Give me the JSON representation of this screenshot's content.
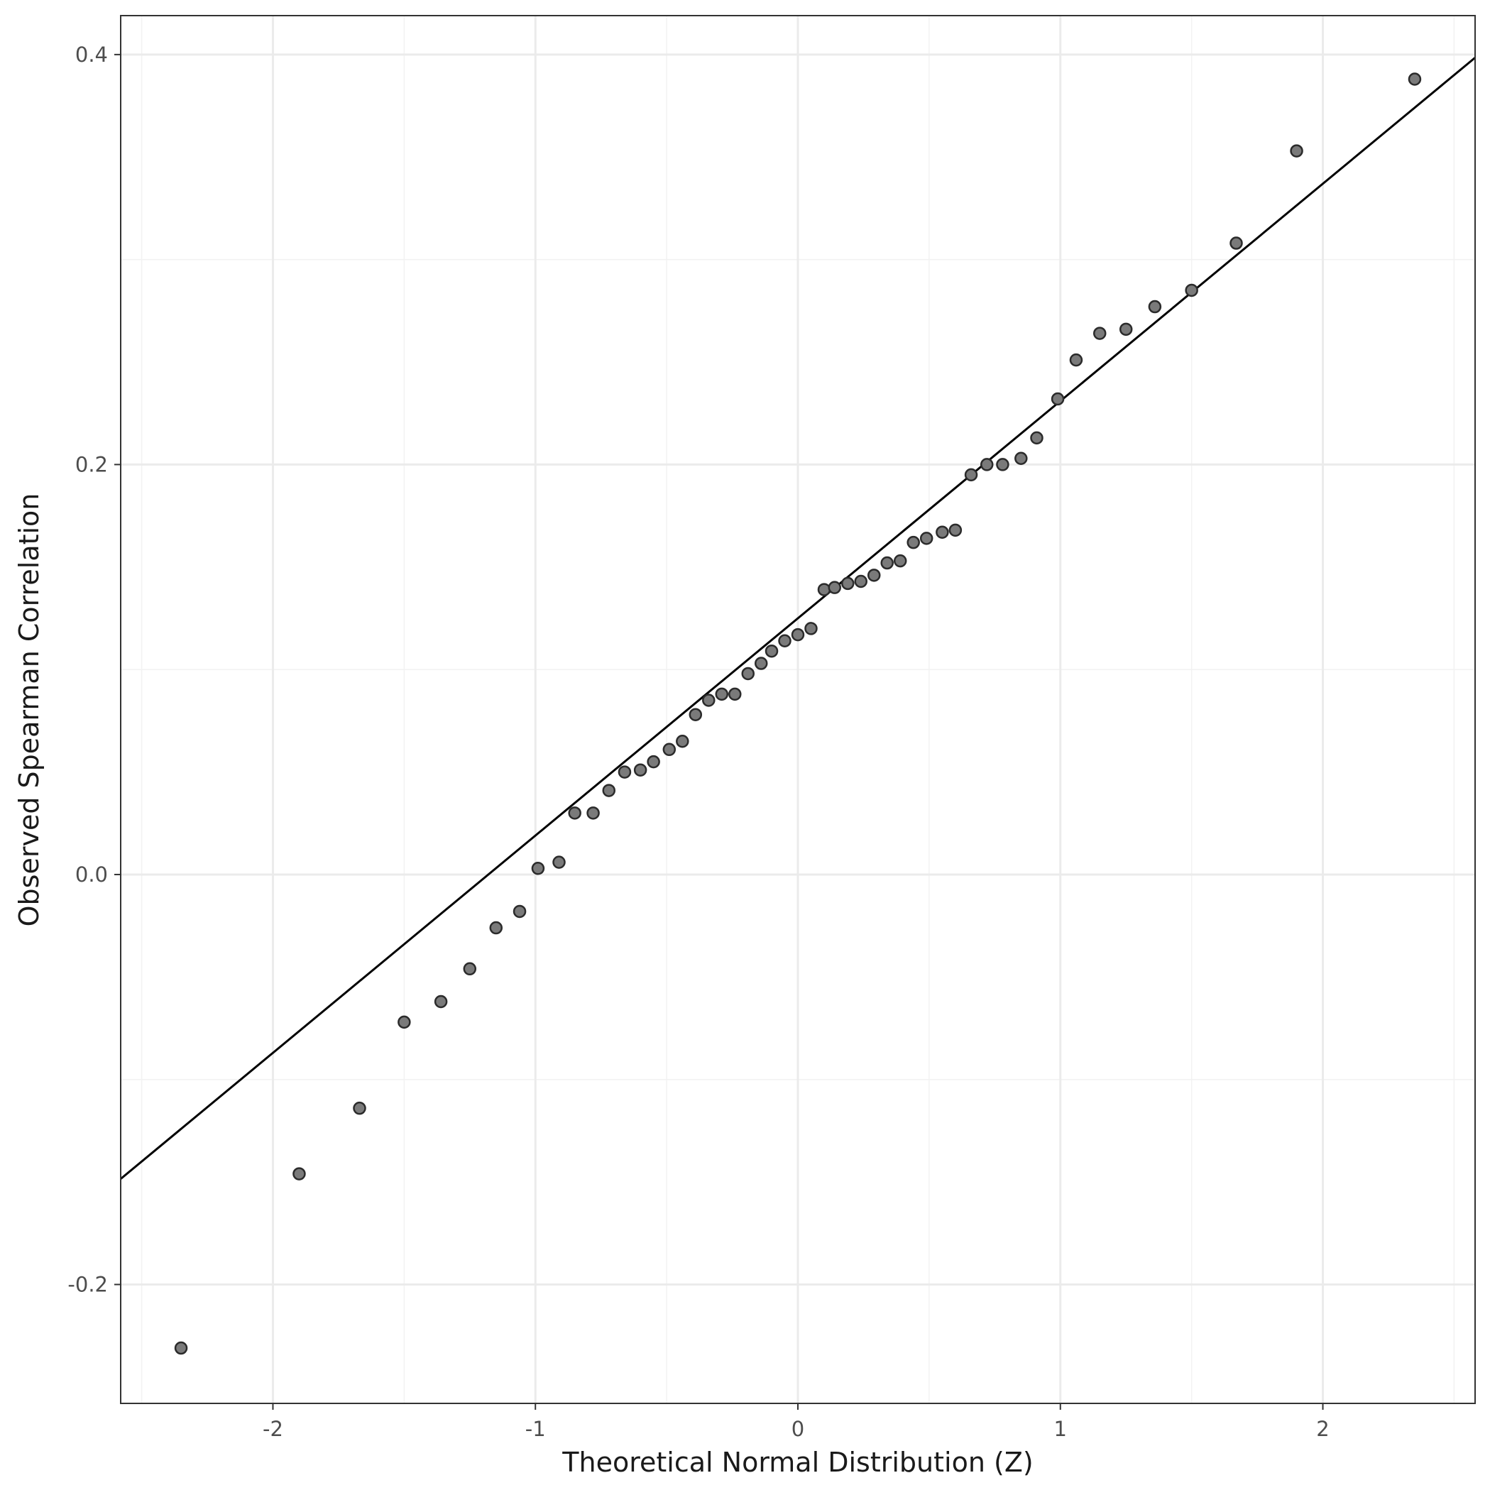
{
  "chart_data": {
    "type": "scatter",
    "title": "",
    "xlabel": "Theoretical Normal Distribution (Z)",
    "ylabel": "Observed Spearman Correlation",
    "xlim": [
      -2.58,
      2.58
    ],
    "ylim": [
      -0.258,
      0.419
    ],
    "x_ticks": [
      -2,
      -1,
      0,
      1,
      2
    ],
    "x_tick_labels": [
      "-2",
      "-1",
      "0",
      "1",
      "2"
    ],
    "y_ticks": [
      -0.2,
      0.0,
      0.2,
      0.4
    ],
    "y_tick_labels": [
      "-0.2",
      "0.0",
      "0.2",
      "0.4"
    ],
    "grid": true,
    "legend": "none",
    "point_color": "#7a7a7a",
    "reference_line": {
      "intercept": 0.125,
      "slope": 0.106
    },
    "x": [
      -2.35,
      -1.9,
      -1.67,
      -1.5,
      -1.36,
      -1.25,
      -1.15,
      -1.06,
      -0.99,
      -0.91,
      -0.85,
      -0.78,
      -0.72,
      -0.66,
      -0.6,
      -0.55,
      -0.49,
      -0.44,
      -0.39,
      -0.34,
      -0.29,
      -0.24,
      -0.19,
      -0.14,
      -0.1,
      -0.05,
      0.0,
      0.05,
      0.1,
      0.14,
      0.19,
      0.24,
      0.29,
      0.34,
      0.39,
      0.44,
      0.49,
      0.55,
      0.6,
      0.66,
      0.72,
      0.78,
      0.85,
      0.91,
      0.99,
      1.06,
      1.15,
      1.25,
      1.36,
      1.5,
      1.67,
      1.9,
      2.35
    ],
    "y": [
      -0.231,
      -0.146,
      -0.114,
      -0.072,
      -0.062,
      -0.046,
      -0.026,
      -0.018,
      0.003,
      0.006,
      0.03,
      0.03,
      0.041,
      0.05,
      0.051,
      0.055,
      0.061,
      0.065,
      0.078,
      0.085,
      0.088,
      0.088,
      0.098,
      0.103,
      0.109,
      0.114,
      0.117,
      0.12,
      0.139,
      0.14,
      0.142,
      0.143,
      0.146,
      0.152,
      0.153,
      0.162,
      0.164,
      0.167,
      0.168,
      0.195,
      0.2,
      0.2,
      0.203,
      0.213,
      0.232,
      0.251,
      0.264,
      0.266,
      0.277,
      0.285,
      0.308,
      0.353,
      0.388
    ]
  }
}
